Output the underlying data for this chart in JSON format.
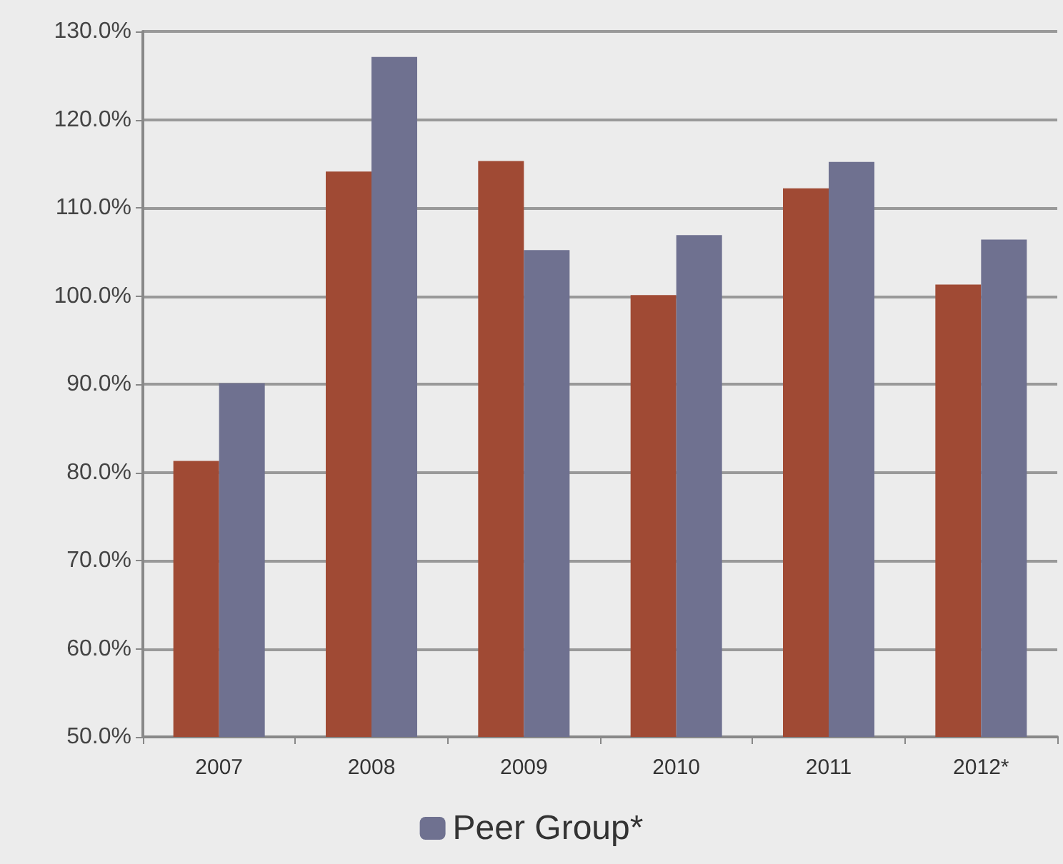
{
  "chart_data": {
    "type": "bar",
    "categories": [
      "2007",
      "2008",
      "2009",
      "2010",
      "2011",
      "2012*"
    ],
    "series": [
      {
        "color": "#a04a34",
        "values": [
          81.3,
          114.1,
          115.3,
          100.1,
          112.2,
          101.3
        ]
      },
      {
        "name": "Peer Group*",
        "color": "#6f7190",
        "values": [
          90.1,
          127.1,
          105.2,
          106.9,
          115.2,
          106.4
        ]
      }
    ],
    "ylim": [
      50,
      130
    ],
    "yticks": [
      {
        "value": 50,
        "label": "50.0%"
      },
      {
        "value": 60,
        "label": "60.0%"
      },
      {
        "value": 70,
        "label": "70.0%"
      },
      {
        "value": 80,
        "label": "80.0%"
      },
      {
        "value": 90,
        "label": "90.0%"
      },
      {
        "value": 100,
        "label": "100.0%"
      },
      {
        "value": 110,
        "label": "110.0%"
      },
      {
        "value": 120,
        "label": "120.0%"
      },
      {
        "value": 130,
        "label": "130.0%"
      }
    ],
    "grid": "y",
    "legend": "bottom"
  }
}
